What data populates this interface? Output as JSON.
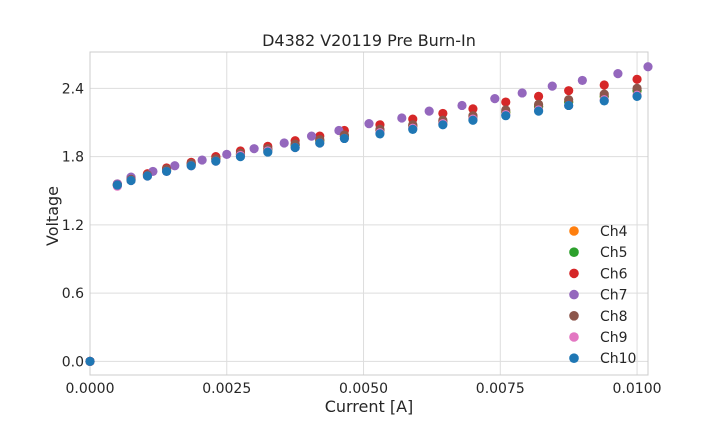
{
  "chart_data": {
    "type": "scatter",
    "title": "D4382 V20119 Pre Burn-In",
    "xlabel": "Current [A]",
    "ylabel": "Voltage",
    "xlim": [
      0,
      0.0102
    ],
    "ylim": [
      -0.12,
      2.72
    ],
    "x_ticks": [
      0,
      0.0025,
      0.005,
      0.0075,
      0.01
    ],
    "x_tick_labels": [
      "0.0000",
      "0.0025",
      "0.0050",
      "0.0075",
      "0.0100"
    ],
    "y_ticks": [
      0,
      0.6,
      1.2,
      1.8,
      2.4
    ],
    "y_tick_labels": [
      "0.0",
      "0.6",
      "1.2",
      "1.8",
      "2.4"
    ],
    "grid": true,
    "legend_position": "lower-right",
    "series": [
      {
        "name": "Ch4",
        "color": "#ff7f0e",
        "x": [
          0,
          0.0005,
          0.00075,
          0.00105,
          0.0014,
          0.00185,
          0.0023,
          0.00275,
          0.00325,
          0.00375,
          0.0042,
          0.00465,
          0.0053,
          0.0059,
          0.00645,
          0.007,
          0.0076,
          0.0082,
          0.00875,
          0.0094,
          0.01
        ],
        "y": [
          0,
          1.55,
          1.6,
          1.64,
          1.68,
          1.73,
          1.78,
          1.82,
          1.86,
          1.9,
          1.94,
          1.98,
          2.03,
          2.07,
          2.1,
          2.14,
          2.19,
          2.24,
          2.28,
          2.33,
          2.38
        ]
      },
      {
        "name": "Ch5",
        "color": "#2ca02c",
        "x": [
          0,
          0.0005,
          0.00075,
          0.00105,
          0.0014,
          0.00185,
          0.0023,
          0.00275,
          0.00325,
          0.00375,
          0.0042,
          0.00465,
          0.0053,
          0.0059,
          0.00645,
          0.007,
          0.0076,
          0.0082,
          0.00875,
          0.0094,
          0.01
        ],
        "y": [
          0,
          1.55,
          1.6,
          1.64,
          1.68,
          1.73,
          1.78,
          1.82,
          1.86,
          1.9,
          1.94,
          1.98,
          2.03,
          2.07,
          2.11,
          2.15,
          2.19,
          2.24,
          2.28,
          2.33,
          2.38
        ]
      },
      {
        "name": "Ch6",
        "color": "#d62728",
        "x": [
          0,
          0.0005,
          0.00075,
          0.00105,
          0.0014,
          0.00185,
          0.0023,
          0.00275,
          0.00325,
          0.00375,
          0.0042,
          0.00465,
          0.0053,
          0.0059,
          0.00645,
          0.007,
          0.0076,
          0.0082,
          0.00875,
          0.0094,
          0.01
        ],
        "y": [
          0,
          1.56,
          1.61,
          1.65,
          1.7,
          1.75,
          1.8,
          1.85,
          1.89,
          1.94,
          1.98,
          2.03,
          2.08,
          2.13,
          2.18,
          2.22,
          2.28,
          2.33,
          2.38,
          2.43,
          2.48
        ]
      },
      {
        "name": "Ch7",
        "color": "#9467bd",
        "x": [
          0,
          0.0005,
          0.00075,
          0.00115,
          0.00155,
          0.00205,
          0.0025,
          0.003,
          0.00355,
          0.00405,
          0.00455,
          0.0051,
          0.0057,
          0.0062,
          0.0068,
          0.0074,
          0.0079,
          0.00845,
          0.009,
          0.00965,
          0.0102
        ],
        "y": [
          0,
          1.56,
          1.62,
          1.67,
          1.72,
          1.77,
          1.82,
          1.87,
          1.92,
          1.98,
          2.03,
          2.09,
          2.14,
          2.2,
          2.25,
          2.31,
          2.36,
          2.42,
          2.47,
          2.53,
          2.59
        ]
      },
      {
        "name": "Ch8",
        "color": "#8c564b",
        "x": [
          0,
          0.0005,
          0.00075,
          0.00105,
          0.0014,
          0.00185,
          0.0023,
          0.00275,
          0.00325,
          0.00375,
          0.0042,
          0.00465,
          0.0053,
          0.0059,
          0.00645,
          0.007,
          0.0076,
          0.0082,
          0.00875,
          0.0094,
          0.01
        ],
        "y": [
          0,
          1.55,
          1.6,
          1.64,
          1.69,
          1.74,
          1.78,
          1.83,
          1.87,
          1.91,
          1.95,
          1.99,
          2.04,
          2.08,
          2.12,
          2.16,
          2.21,
          2.26,
          2.3,
          2.35,
          2.4
        ]
      },
      {
        "name": "Ch9",
        "color": "#e377c2",
        "x": [
          0,
          0.0005,
          0.00075,
          0.00105,
          0.0014,
          0.00185,
          0.0023,
          0.00275,
          0.00325,
          0.00375,
          0.0042,
          0.00465,
          0.0053,
          0.0059,
          0.00645,
          0.007,
          0.0076,
          0.0082,
          0.00875,
          0.0094,
          0.01
        ],
        "y": [
          0,
          1.54,
          1.59,
          1.63,
          1.67,
          1.72,
          1.76,
          1.81,
          1.85,
          1.88,
          1.92,
          1.96,
          2.01,
          2.05,
          2.09,
          2.13,
          2.17,
          2.21,
          2.25,
          2.3,
          2.34
        ]
      },
      {
        "name": "Ch10",
        "color": "#1f77b4",
        "x": [
          0,
          0.0005,
          0.00075,
          0.00105,
          0.0014,
          0.00185,
          0.0023,
          0.00275,
          0.00325,
          0.00375,
          0.0042,
          0.00465,
          0.0053,
          0.0059,
          0.00645,
          0.007,
          0.0076,
          0.0082,
          0.00875,
          0.0094,
          0.01
        ],
        "y": [
          0,
          1.55,
          1.59,
          1.63,
          1.67,
          1.72,
          1.76,
          1.8,
          1.84,
          1.88,
          1.92,
          1.96,
          2.0,
          2.04,
          2.08,
          2.12,
          2.16,
          2.2,
          2.25,
          2.29,
          2.33
        ]
      }
    ]
  }
}
